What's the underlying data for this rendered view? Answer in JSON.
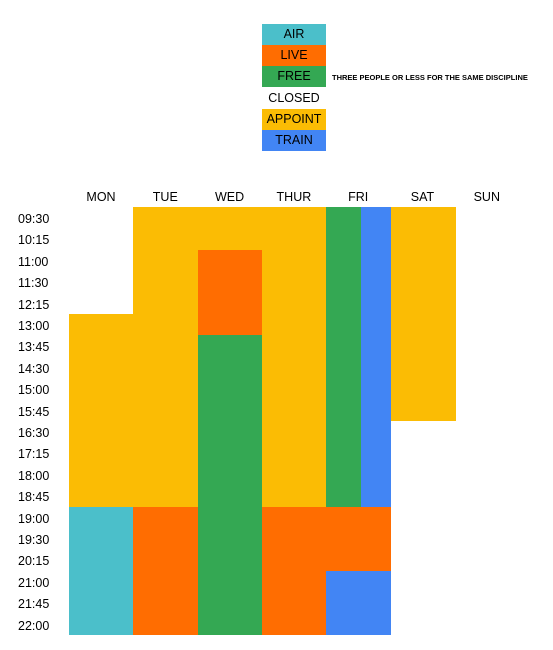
{
  "legend": {
    "items": [
      {
        "key": "air",
        "label": "AIR",
        "color": "#4bbfca"
      },
      {
        "key": "live",
        "label": "LIVE",
        "color": "#ff6d01"
      },
      {
        "key": "free",
        "label": "FREE",
        "color": "#34a853"
      },
      {
        "key": "closed",
        "label": "CLOSED",
        "color": "#ffffff"
      },
      {
        "key": "appoint",
        "label": "APPOINT",
        "color": "#fbbc04"
      },
      {
        "key": "train",
        "label": "TRAIN",
        "color": "#4285f4"
      }
    ],
    "free_note": "THREE PEOPLE OR LESS FOR THE SAME DISCIPLINE"
  },
  "days": [
    "MON",
    "TUE",
    "WED",
    "THUR",
    "FRI",
    "SAT",
    "SUN"
  ],
  "times": [
    "09:30",
    "10:15",
    "11:00",
    "11:30",
    "12:15",
    "13:00",
    "13:45",
    "14:30",
    "15:00",
    "15:45",
    "16:30",
    "17:15",
    "18:00",
    "18:45",
    "19:00",
    "19:30",
    "20:15",
    "21:00",
    "21:45",
    "22:00"
  ],
  "schedule": [
    {
      "day": "MON",
      "start": "13:00",
      "end": "19:00",
      "type": "appoint"
    },
    {
      "day": "MON",
      "start": "19:00",
      "end": "22:00",
      "type": "air"
    },
    {
      "day": "TUE",
      "start": "09:30",
      "end": "19:00",
      "type": "appoint"
    },
    {
      "day": "TUE",
      "start": "19:00",
      "end": "22:00",
      "type": "live"
    },
    {
      "day": "WED",
      "start": "09:30",
      "end": "11:00",
      "type": "appoint"
    },
    {
      "day": "WED",
      "start": "11:00",
      "end": "13:45",
      "type": "live"
    },
    {
      "day": "WED",
      "start": "13:45",
      "end": "22:00",
      "type": "free"
    },
    {
      "day": "THUR",
      "start": "09:30",
      "end": "19:00",
      "type": "appoint"
    },
    {
      "day": "THUR",
      "start": "19:00",
      "end": "22:00",
      "type": "live"
    },
    {
      "day": "FRI",
      "start": "09:30",
      "end": "19:00",
      "type": "free",
      "half": "left"
    },
    {
      "day": "FRI",
      "start": "09:30",
      "end": "19:00",
      "type": "train",
      "half": "right"
    },
    {
      "day": "FRI",
      "start": "19:00",
      "end": "21:00",
      "type": "live"
    },
    {
      "day": "FRI",
      "start": "21:00",
      "end": "22:00",
      "type": "train"
    },
    {
      "day": "SAT",
      "start": "09:30",
      "end": "16:30",
      "type": "appoint"
    }
  ]
}
